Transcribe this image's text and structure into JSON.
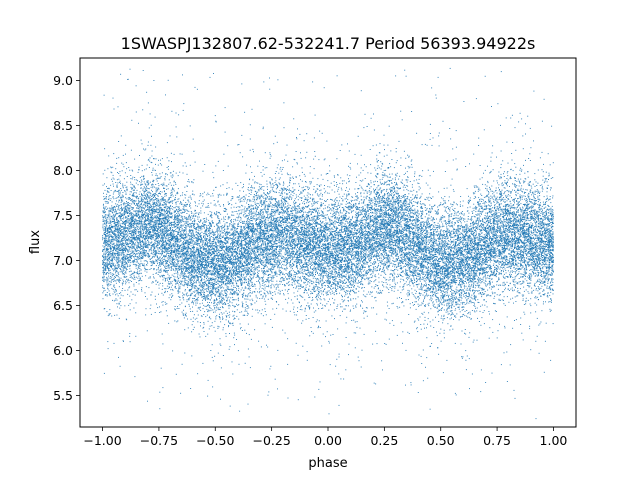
{
  "chart_data": {
    "type": "scatter",
    "title": "1SWASPJ132807.62-532241.7 Period 56393.94922s",
    "xlabel": "phase",
    "ylabel": "flux",
    "xlim": [
      -1.1,
      1.1
    ],
    "ylim": [
      5.15,
      9.25
    ],
    "x_ticks": [
      -1.0,
      -0.75,
      -0.5,
      -0.25,
      0.0,
      0.25,
      0.5,
      0.75,
      1.0
    ],
    "x_tick_labels": [
      "−1.00",
      "−0.75",
      "−0.50",
      "−0.25",
      "0.00",
      "0.25",
      "0.50",
      "0.75",
      "1.00"
    ],
    "y_ticks": [
      5.5,
      6.0,
      6.5,
      7.0,
      7.5,
      8.0,
      8.5,
      9.0
    ],
    "y_tick_labels": [
      "5.5",
      "6.0",
      "6.5",
      "7.0",
      "7.5",
      "8.0",
      "8.5",
      "9.0"
    ],
    "grid": false,
    "marker_color": "#1f77b4",
    "phase_range": [
      -1.0,
      1.0
    ],
    "curve": {
      "phase": [
        -1.0,
        -0.9,
        -0.8,
        -0.75,
        -0.7,
        -0.6,
        -0.5,
        -0.4,
        -0.3,
        -0.2,
        -0.1,
        0.0,
        0.1,
        0.2,
        0.25,
        0.3,
        0.4,
        0.5,
        0.6,
        0.7,
        0.8,
        0.9,
        1.0
      ],
      "flux": [
        7.15,
        7.3,
        7.38,
        7.35,
        7.25,
        7.05,
        6.95,
        7.05,
        7.25,
        7.3,
        7.2,
        7.1,
        7.15,
        7.3,
        7.38,
        7.35,
        7.15,
        6.95,
        7.0,
        7.2,
        7.3,
        7.25,
        7.15
      ]
    },
    "scatter_sd": 0.3,
    "point_count": 26000
  }
}
